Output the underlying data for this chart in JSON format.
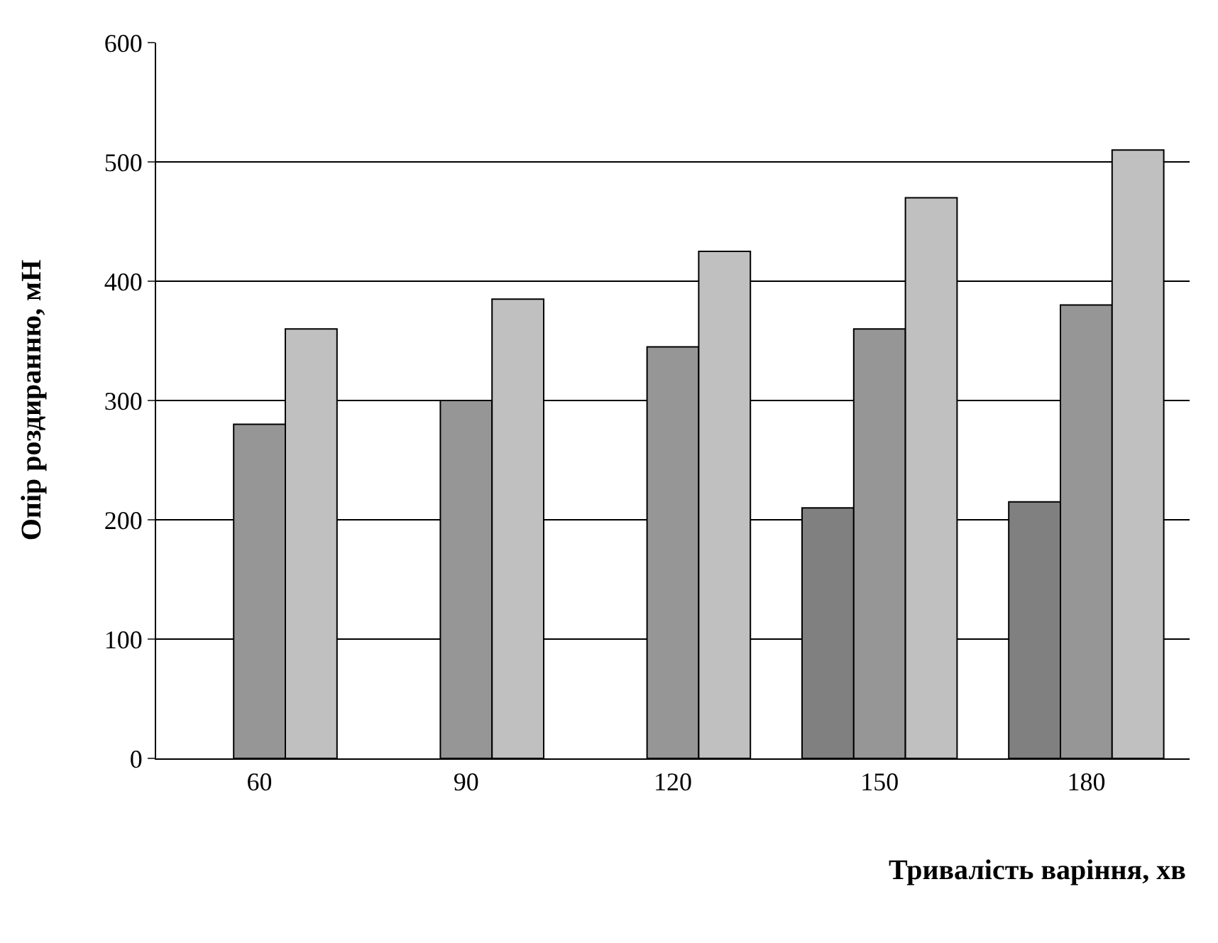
{
  "chart_data": {
    "type": "bar",
    "xlabel": "Тривалість варіння, хв",
    "ylabel": "Опір роздиранню, мН",
    "categories": [
      "60",
      "90",
      "120",
      "150",
      "180"
    ],
    "series": [
      {
        "color": "#808080",
        "values": [
          null,
          null,
          null,
          210,
          215
        ]
      },
      {
        "color": "#969696",
        "values": [
          280,
          300,
          345,
          360,
          380
        ]
      },
      {
        "color": "#c0c0c0",
        "values": [
          360,
          385,
          425,
          470,
          510
        ]
      }
    ],
    "ylim": [
      0,
      600
    ],
    "yticks": [
      0,
      100,
      200,
      300,
      400,
      500,
      600
    ],
    "grid": "y",
    "legend": false
  }
}
